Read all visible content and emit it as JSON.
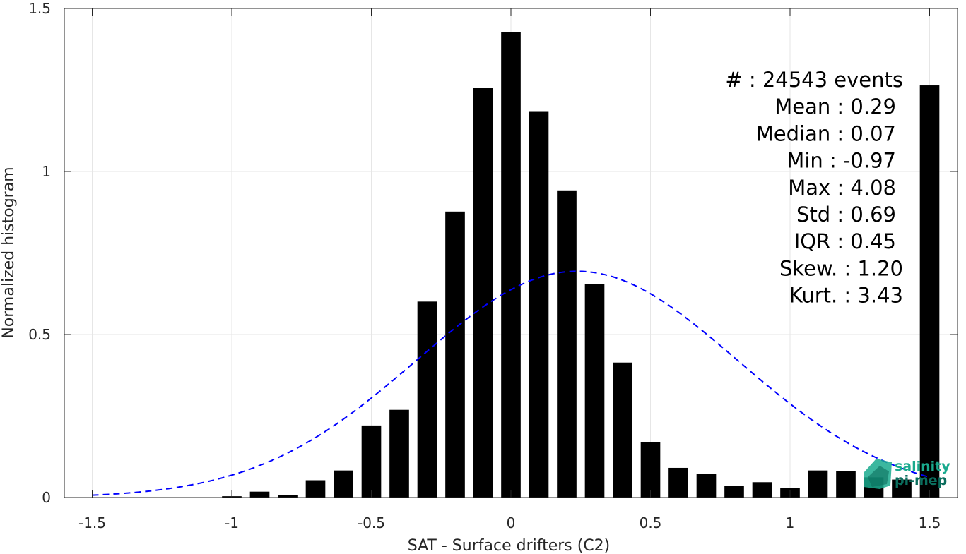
{
  "chart_data": {
    "type": "bar",
    "xlabel": "SAT - Surface drifters (C2)",
    "ylabel": "Normalized histogram",
    "xlim": [
      -1.6,
      1.6
    ],
    "ylim": [
      0,
      1.5
    ],
    "xticks": [
      "-1.5",
      "-1",
      "-0.5",
      "0",
      "0.5",
      "1",
      "1.5"
    ],
    "yticks": [
      "0",
      "0.5",
      "1",
      "1.5"
    ],
    "grid": true,
    "bar_width": 0.07,
    "bar_color": "#000000",
    "bins": [
      {
        "x": -1.0,
        "y": 0.004
      },
      {
        "x": -0.9,
        "y": 0.018
      },
      {
        "x": -0.8,
        "y": 0.008
      },
      {
        "x": -0.7,
        "y": 0.053
      },
      {
        "x": -0.6,
        "y": 0.083
      },
      {
        "x": -0.5,
        "y": 0.221
      },
      {
        "x": -0.4,
        "y": 0.269
      },
      {
        "x": -0.3,
        "y": 0.601
      },
      {
        "x": -0.2,
        "y": 0.877
      },
      {
        "x": -0.1,
        "y": 1.256
      },
      {
        "x": 0.0,
        "y": 1.427
      },
      {
        "x": 0.1,
        "y": 1.185
      },
      {
        "x": 0.2,
        "y": 0.942
      },
      {
        "x": 0.3,
        "y": 0.655
      },
      {
        "x": 0.4,
        "y": 0.414
      },
      {
        "x": 0.5,
        "y": 0.17
      },
      {
        "x": 0.6,
        "y": 0.091
      },
      {
        "x": 0.7,
        "y": 0.072
      },
      {
        "x": 0.8,
        "y": 0.035
      },
      {
        "x": 0.9,
        "y": 0.047
      },
      {
        "x": 1.0,
        "y": 0.029
      },
      {
        "x": 1.1,
        "y": 0.083
      },
      {
        "x": 1.2,
        "y": 0.081
      },
      {
        "x": 1.3,
        "y": 0.062
      },
      {
        "x": 1.4,
        "y": 0.055
      },
      {
        "x": 1.5,
        "y": 1.264
      }
    ],
    "gaussian_fit": {
      "mean": 0.237,
      "std": 0.575,
      "peak": 0.694,
      "x_range": [
        -1.5,
        1.5
      ],
      "color": "#0000ff",
      "style": "dashed"
    },
    "stats": [
      "#  : 24543 events",
      "Mean : 0.29",
      "Median : 0.07",
      "Min : -0.97",
      "Max : 4.08",
      "Std : 0.69",
      "IQR : 0.45",
      "Skew. : 1.20",
      "Kurt. : 3.43"
    ]
  },
  "logo": {
    "line1": "salinity",
    "line2": "pi-mep",
    "color": "#1aaa8e",
    "dark_color": "#0b6e5e"
  }
}
